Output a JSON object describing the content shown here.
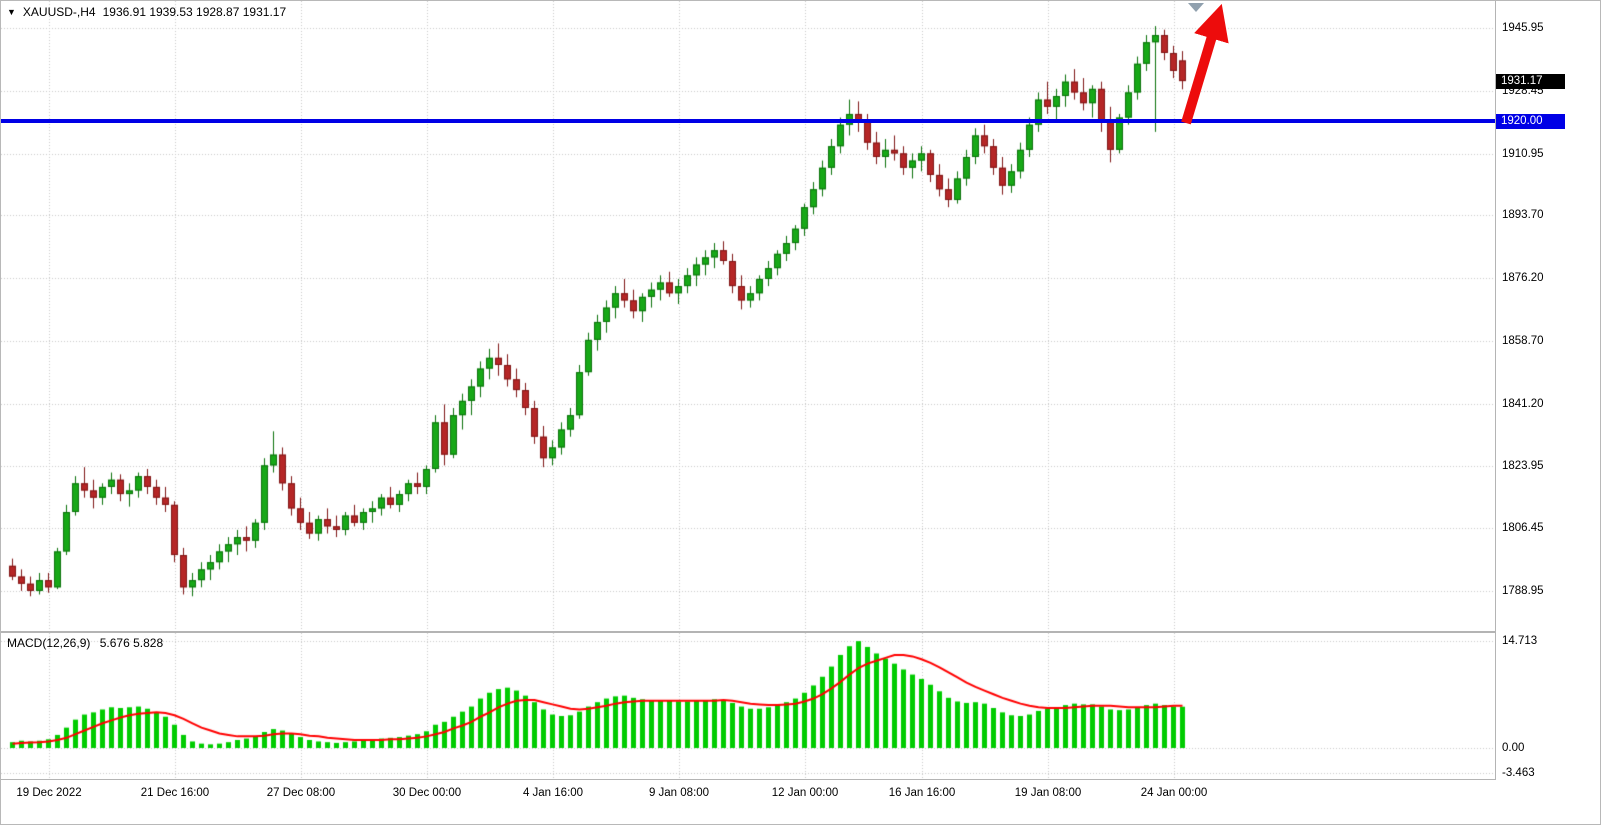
{
  "header": {
    "symbol_marker": "▼",
    "title": "XAUUSD-,H4",
    "ohlc": "1936.91 1939.53 1928.87 1931.17"
  },
  "price_axis": {
    "labels": [
      "1945.95",
      "1928.45",
      "1910.95",
      "1893.70",
      "1876.20",
      "1858.70",
      "1841.20",
      "1823.95",
      "1806.45",
      "1788.95"
    ],
    "current_price": "1931.17",
    "level_price": "1920.00"
  },
  "time_axis": {
    "labels": [
      "19 Dec 2022",
      "21 Dec 16:00",
      "27 Dec 08:00",
      "30 Dec 00:00",
      "4 Jan 16:00",
      "9 Jan 08:00",
      "12 Jan 00:00",
      "16 Jan 16:00",
      "19 Jan 08:00",
      "24 Jan 00:00"
    ],
    "candle_indices": [
      4,
      18,
      32,
      46,
      60,
      74,
      88,
      101,
      115,
      129
    ]
  },
  "macd_panel": {
    "label": "MACD(12,26,9)",
    "values_text": "5.676 5.828",
    "axis_labels": [
      "14.713",
      "0.00",
      "-3.463"
    ]
  },
  "colors": {
    "up_fill": "#17a817",
    "up_stroke": "#0b720b",
    "down_fill": "#b52626",
    "down_stroke": "#801616",
    "grid": "#c9c9c9",
    "macd_histogram": "#00cc00",
    "macd_signal": "#ff0000",
    "level_line": "#0000e6",
    "current_badge_bg": "#000000",
    "arrow": "#ed0c0c"
  },
  "chart_data": [
    {
      "type": "candlestick",
      "symbol": "XAUUSD-",
      "timeframe": "H4",
      "grid": true,
      "ylim": [
        1778.5,
        1953.5
      ],
      "y_ticks": [
        1945.95,
        1928.45,
        1910.95,
        1893.7,
        1876.2,
        1858.7,
        1841.2,
        1823.95,
        1806.45,
        1788.95
      ],
      "x_tick_labels": [
        "19 Dec 2022",
        "21 Dec 16:00",
        "27 Dec 08:00",
        "30 Dec 00:00",
        "4 Jan 16:00",
        "9 Jan 08:00",
        "12 Jan 00:00",
        "16 Jan 16:00",
        "19 Jan 08:00",
        "24 Jan 00:00"
      ],
      "x_tick_candle_indices": [
        4,
        18,
        32,
        46,
        60,
        74,
        88,
        101,
        115,
        129
      ],
      "last_ohlc": {
        "open": 1936.91,
        "high": 1939.53,
        "low": 1928.87,
        "close": 1931.17
      },
      "annotations": [
        {
          "type": "hline",
          "price": 1920.0,
          "color": "#0000e6",
          "width": 4
        },
        {
          "type": "arrow-up",
          "color": "#ed0c0c",
          "from_price": 1920.0,
          "note": "large red arrow pointing up-right at latest candles"
        }
      ],
      "ohlc": [
        [
          1796,
          1798,
          1792,
          1793
        ],
        [
          1793,
          1795,
          1789,
          1791
        ],
        [
          1791,
          1793,
          1787.5,
          1789
        ],
        [
          1789,
          1794,
          1788,
          1792
        ],
        [
          1792,
          1794,
          1788.5,
          1790
        ],
        [
          1790,
          1801,
          1789.5,
          1800
        ],
        [
          1800,
          1813,
          1799,
          1811
        ],
        [
          1811,
          1821,
          1810,
          1819
        ],
        [
          1819,
          1823.5,
          1815,
          1817
        ],
        [
          1817,
          1820,
          1812,
          1815
        ],
        [
          1815,
          1819,
          1813,
          1818
        ],
        [
          1818,
          1822,
          1816,
          1820
        ],
        [
          1820,
          1821.5,
          1814,
          1816
        ],
        [
          1816,
          1819,
          1812.5,
          1817
        ],
        [
          1817,
          1822,
          1815,
          1821
        ],
        [
          1821,
          1823,
          1816,
          1818
        ],
        [
          1818,
          1820,
          1813,
          1815
        ],
        [
          1815,
          1818,
          1811,
          1813
        ],
        [
          1813,
          1814,
          1797,
          1799
        ],
        [
          1799,
          1801,
          1788,
          1790
        ],
        [
          1790,
          1794,
          1787.5,
          1792
        ],
        [
          1792,
          1797,
          1790,
          1795
        ],
        [
          1795,
          1799,
          1792,
          1797
        ],
        [
          1797,
          1802,
          1795,
          1800
        ],
        [
          1800,
          1804,
          1797,
          1802
        ],
        [
          1802,
          1806,
          1799,
          1804
        ],
        [
          1804,
          1807,
          1800,
          1803
        ],
        [
          1803,
          1809,
          1801,
          1808
        ],
        [
          1808,
          1826,
          1806,
          1824
        ],
        [
          1824,
          1833.5,
          1822,
          1827
        ],
        [
          1827,
          1829,
          1817,
          1819
        ],
        [
          1819,
          1821,
          1810,
          1812
        ],
        [
          1812,
          1815,
          1806,
          1808
        ],
        [
          1808,
          1811,
          1803.5,
          1805
        ],
        [
          1805,
          1810,
          1803,
          1809
        ],
        [
          1809,
          1812,
          1805,
          1807
        ],
        [
          1807,
          1810,
          1804,
          1806
        ],
        [
          1806,
          1811,
          1804.5,
          1810
        ],
        [
          1810,
          1813,
          1807,
          1808
        ],
        [
          1808,
          1812,
          1806,
          1811
        ],
        [
          1811,
          1814,
          1808,
          1812
        ],
        [
          1812,
          1816,
          1810,
          1815
        ],
        [
          1815,
          1818,
          1812,
          1813
        ],
        [
          1813,
          1817,
          1811,
          1816
        ],
        [
          1816,
          1820,
          1814,
          1819
        ],
        [
          1819,
          1822,
          1816,
          1818
        ],
        [
          1818,
          1824,
          1816,
          1823
        ],
        [
          1823,
          1838,
          1822,
          1836
        ],
        [
          1836,
          1841,
          1824,
          1827
        ],
        [
          1827,
          1840,
          1826,
          1838
        ],
        [
          1838,
          1844,
          1834,
          1842
        ],
        [
          1842,
          1848,
          1838,
          1846
        ],
        [
          1846,
          1853,
          1843,
          1851
        ],
        [
          1851,
          1856.5,
          1848,
          1854
        ],
        [
          1854,
          1858,
          1849,
          1852
        ],
        [
          1852,
          1855,
          1846,
          1848
        ],
        [
          1848,
          1851,
          1843,
          1845
        ],
        [
          1845,
          1847,
          1838,
          1840
        ],
        [
          1840,
          1842,
          1830,
          1832
        ],
        [
          1832,
          1835,
          1823.5,
          1826
        ],
        [
          1826,
          1831,
          1824,
          1829
        ],
        [
          1829,
          1836,
          1827,
          1834
        ],
        [
          1834,
          1840,
          1832,
          1838
        ],
        [
          1838,
          1852,
          1837,
          1850
        ],
        [
          1850,
          1861,
          1849,
          1859
        ],
        [
          1859,
          1866,
          1856,
          1864
        ],
        [
          1864,
          1870,
          1861,
          1868
        ],
        [
          1868,
          1874,
          1865,
          1872
        ],
        [
          1872,
          1876,
          1868,
          1870
        ],
        [
          1870,
          1873,
          1865,
          1867
        ],
        [
          1867,
          1872,
          1864,
          1871
        ],
        [
          1871,
          1875,
          1868,
          1873
        ],
        [
          1873,
          1877,
          1870,
          1875
        ],
        [
          1875,
          1878,
          1871,
          1872
        ],
        [
          1872,
          1876,
          1869,
          1874
        ],
        [
          1874,
          1879,
          1872,
          1877
        ],
        [
          1877,
          1882,
          1874,
          1880
        ],
        [
          1880,
          1884,
          1877,
          1882
        ],
        [
          1882,
          1886,
          1879,
          1884
        ],
        [
          1884,
          1886.5,
          1880,
          1881
        ],
        [
          1881,
          1883,
          1872,
          1874
        ],
        [
          1874,
          1877,
          1867.5,
          1870
        ],
        [
          1870,
          1874,
          1868,
          1872
        ],
        [
          1872,
          1877,
          1870,
          1876
        ],
        [
          1876,
          1881,
          1874,
          1879
        ],
        [
          1879,
          1884,
          1877,
          1883
        ],
        [
          1883,
          1888,
          1881,
          1886
        ],
        [
          1886,
          1891,
          1884,
          1890
        ],
        [
          1890,
          1897,
          1888,
          1896
        ],
        [
          1896,
          1903,
          1894,
          1901
        ],
        [
          1901,
          1909,
          1899,
          1907
        ],
        [
          1907,
          1915,
          1905,
          1913
        ],
        [
          1913,
          1921,
          1911,
          1919
        ],
        [
          1919,
          1926,
          1916,
          1922
        ],
        [
          1922,
          1925.5,
          1917,
          1920
        ],
        [
          1920,
          1922,
          1912,
          1914
        ],
        [
          1914,
          1917,
          1908,
          1910
        ],
        [
          1910,
          1915,
          1907,
          1912
        ],
        [
          1912,
          1916,
          1909,
          1911
        ],
        [
          1911,
          1913,
          1905,
          1907
        ],
        [
          1907,
          1911,
          1904,
          1909
        ],
        [
          1909,
          1913,
          1906,
          1911
        ],
        [
          1911,
          1912,
          1903,
          1905
        ],
        [
          1905,
          1908,
          1899,
          1901
        ],
        [
          1901,
          1904,
          1896,
          1898
        ],
        [
          1898,
          1906,
          1897,
          1904
        ],
        [
          1904,
          1912,
          1902,
          1910
        ],
        [
          1910,
          1918,
          1908,
          1916
        ],
        [
          1916,
          1919,
          1911,
          1913
        ],
        [
          1913,
          1915,
          1905,
          1907
        ],
        [
          1907,
          1910,
          1899.5,
          1902
        ],
        [
          1902,
          1908,
          1900,
          1906
        ],
        [
          1906,
          1914,
          1904,
          1912
        ],
        [
          1912,
          1921,
          1910,
          1919
        ],
        [
          1919,
          1928,
          1917,
          1926
        ],
        [
          1926,
          1931,
          1922,
          1924
        ],
        [
          1924,
          1929,
          1920,
          1927
        ],
        [
          1927,
          1933,
          1924,
          1931
        ],
        [
          1931,
          1934.5,
          1926,
          1928
        ],
        [
          1928,
          1932,
          1923,
          1925
        ],
        [
          1925,
          1930,
          1921,
          1929
        ],
        [
          1929,
          1931,
          1917,
          1920
        ],
        [
          1920,
          1924,
          1908.5,
          1912
        ],
        [
          1912,
          1922,
          1911,
          1921
        ],
        [
          1921,
          1930,
          1919,
          1928
        ],
        [
          1928,
          1938,
          1926,
          1936
        ],
        [
          1936,
          1944,
          1934,
          1942
        ],
        [
          1942,
          1946.5,
          1917,
          1944
        ],
        [
          1944,
          1945.5,
          1937,
          1939
        ],
        [
          1939,
          1941,
          1932,
          1934
        ],
        [
          1936.91,
          1939.53,
          1928.87,
          1931.17
        ]
      ]
    },
    {
      "type": "macd",
      "title": "MACD(12,26,9)",
      "current_macd": 5.676,
      "current_signal": 5.828,
      "y_ticks": [
        14.713,
        0.0,
        -3.463
      ],
      "ylim": [
        -4.3,
        15.8
      ],
      "histogram": [
        0.8,
        1.0,
        0.9,
        1.0,
        1.2,
        1.8,
        2.8,
        3.9,
        4.6,
        4.9,
        5.3,
        5.6,
        5.5,
        5.6,
        5.7,
        5.4,
        4.9,
        4.3,
        3.2,
        1.8,
        0.9,
        0.6,
        0.5,
        0.6,
        0.8,
        1.1,
        1.3,
        1.6,
        2.2,
        2.6,
        2.4,
        2.0,
        1.5,
        1.1,
        0.9,
        0.8,
        0.7,
        0.8,
        0.9,
        1.0,
        1.1,
        1.3,
        1.4,
        1.5,
        1.7,
        1.9,
        2.3,
        3.2,
        3.6,
        4.3,
        5.0,
        5.7,
        6.8,
        7.6,
        8.1,
        8.3,
        7.9,
        7.2,
        6.3,
        5.3,
        4.6,
        4.4,
        4.5,
        5.0,
        5.7,
        6.3,
        6.8,
        7.1,
        7.2,
        6.9,
        6.7,
        6.6,
        6.6,
        6.5,
        6.4,
        6.4,
        6.5,
        6.6,
        6.7,
        6.6,
        6.2,
        5.7,
        5.4,
        5.4,
        5.6,
        5.9,
        6.3,
        6.8,
        7.6,
        8.6,
        9.8,
        11.2,
        12.8,
        14.0,
        14.7,
        13.9,
        13.0,
        12.3,
        11.6,
        10.8,
        10.1,
        9.5,
        8.7,
        7.8,
        6.9,
        6.4,
        6.2,
        6.3,
        6.1,
        5.5,
        4.9,
        4.5,
        4.4,
        4.6,
        5.1,
        5.4,
        5.6,
        5.9,
        6.1,
        6.0,
        6.0,
        5.7,
        5.3,
        5.2,
        5.3,
        5.6,
        5.9,
        6.1,
        5.9,
        5.7,
        5.676
      ],
      "signal": [
        0.6,
        0.7,
        0.75,
        0.8,
        0.9,
        1.1,
        1.4,
        1.9,
        2.4,
        2.9,
        3.4,
        3.8,
        4.2,
        4.5,
        4.7,
        4.8,
        4.9,
        4.8,
        4.5,
        4.0,
        3.4,
        2.8,
        2.4,
        2.0,
        1.8,
        1.6,
        1.6,
        1.6,
        1.7,
        1.9,
        2.0,
        2.0,
        1.9,
        1.7,
        1.6,
        1.4,
        1.3,
        1.2,
        1.1,
        1.1,
        1.1,
        1.1,
        1.2,
        1.2,
        1.3,
        1.4,
        1.6,
        1.9,
        2.2,
        2.7,
        3.1,
        3.6,
        4.3,
        4.9,
        5.6,
        6.1,
        6.5,
        6.6,
        6.6,
        6.3,
        6.0,
        5.7,
        5.4,
        5.3,
        5.4,
        5.6,
        5.8,
        6.1,
        6.3,
        6.4,
        6.5,
        6.5,
        6.5,
        6.5,
        6.5,
        6.5,
        6.5,
        6.5,
        6.5,
        6.6,
        6.5,
        6.3,
        6.1,
        6.0,
        5.9,
        5.9,
        6.0,
        6.1,
        6.4,
        6.8,
        7.4,
        8.2,
        9.1,
        10.1,
        11.0,
        11.6,
        12.0,
        12.4,
        12.8,
        12.8,
        12.6,
        12.2,
        11.7,
        11.1,
        10.4,
        9.7,
        9.0,
        8.4,
        7.9,
        7.4,
        6.9,
        6.5,
        6.1,
        5.8,
        5.6,
        5.5,
        5.5,
        5.5,
        5.6,
        5.7,
        5.8,
        5.8,
        5.8,
        5.7,
        5.6,
        5.6,
        5.6,
        5.6,
        5.7,
        5.8,
        5.828
      ]
    }
  ]
}
